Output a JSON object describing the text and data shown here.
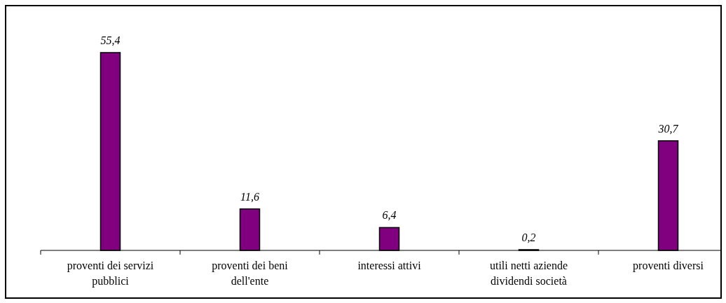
{
  "chart_data": {
    "type": "bar",
    "categories": [
      "proventi dei servizi pubblici",
      "proventi dei beni dell'ente",
      "interessi attivi",
      "utili netti aziende dividendi società",
      "proventi diversi"
    ],
    "values": [
      55.4,
      11.6,
      6.4,
      0.2,
      30.7
    ],
    "value_labels": [
      "55,4",
      "11,6",
      "6,4",
      "0,2",
      "30,7"
    ],
    "color": "#800080",
    "grid": false,
    "legend": false
  }
}
